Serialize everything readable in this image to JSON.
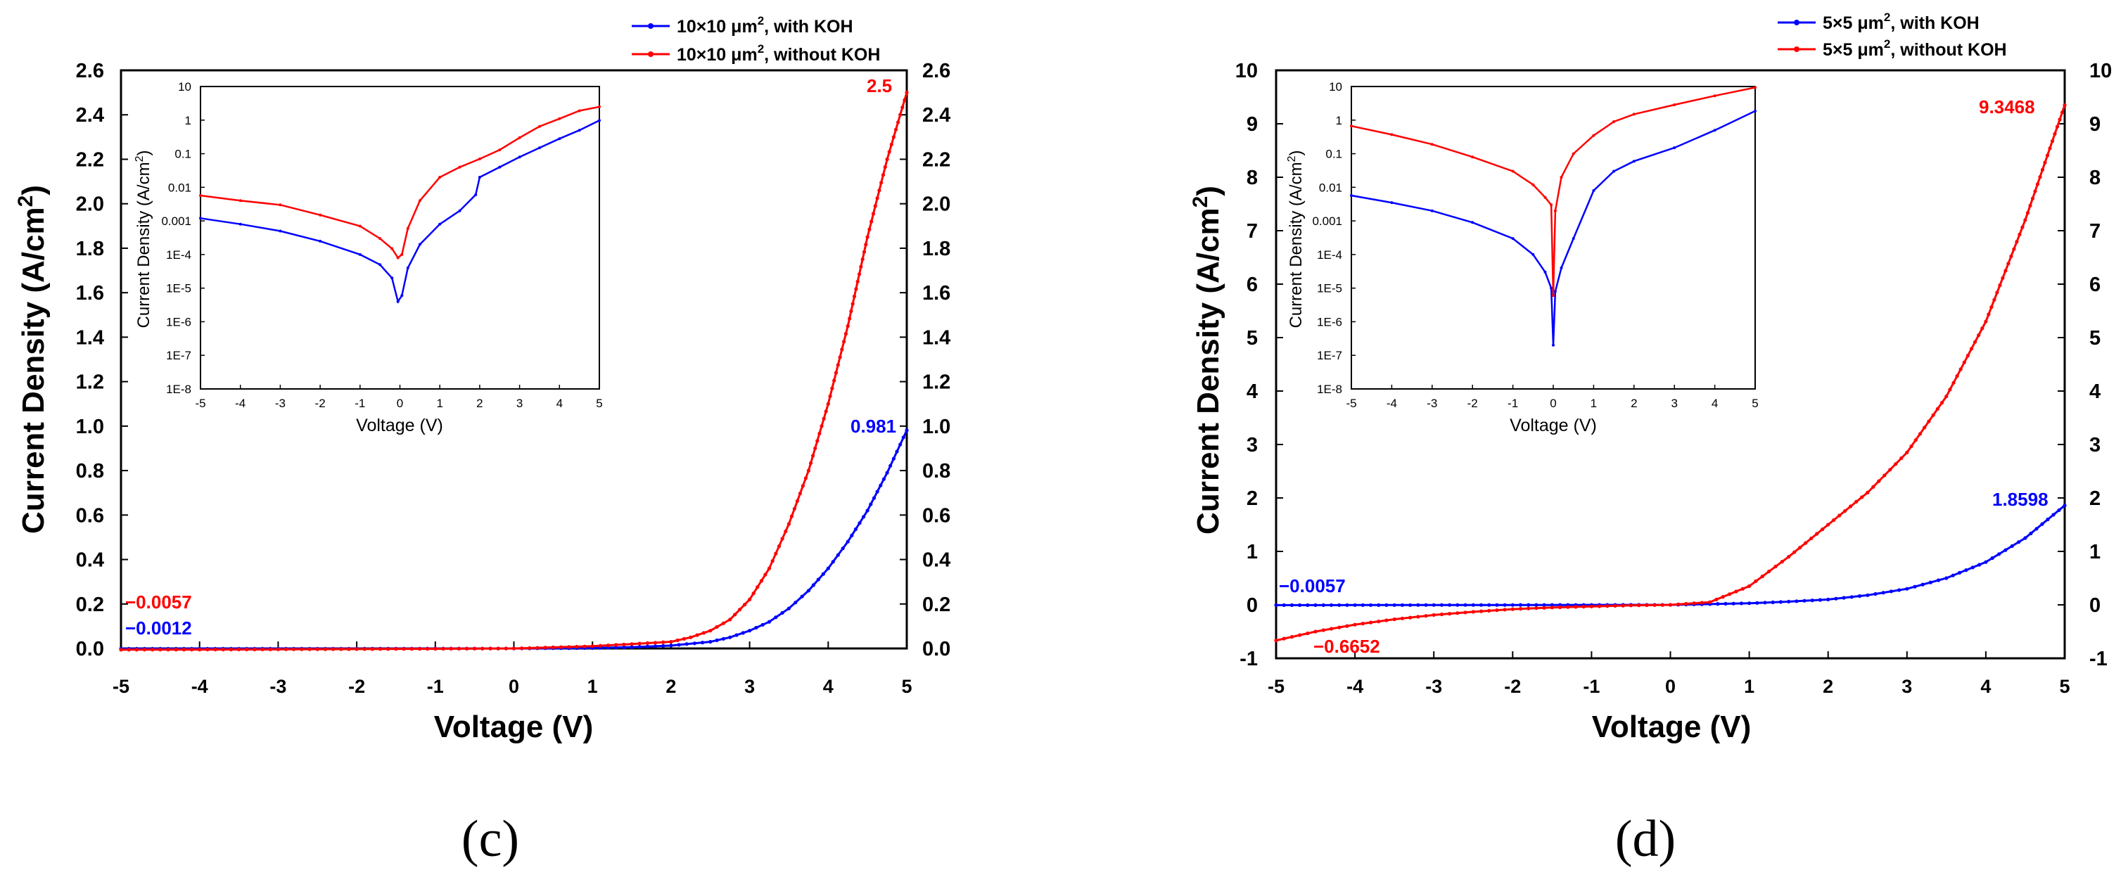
{
  "chart_data": [
    {
      "type": "line",
      "panel_label": "(c)",
      "xlabel": "Voltage (V)",
      "ylabel": "Current Density (A/cm²)",
      "ylabel_base": "Current Density (A/cm",
      "ylabel_sup": "2",
      "ylabel_end": ")",
      "xlim": [
        -5,
        5
      ],
      "ylim": [
        0,
        2.6
      ],
      "x_ticks": [
        "-5",
        "-4",
        "-3",
        "-2",
        "-1",
        "0",
        "1",
        "2",
        "3",
        "4",
        "5"
      ],
      "y_ticks": [
        "0.0",
        "0.2",
        "0.4",
        "0.6",
        "0.8",
        "1.0",
        "1.2",
        "1.4",
        "1.6",
        "1.8",
        "2.0",
        "2.2",
        "2.4",
        "2.6"
      ],
      "y_ticks_right": [
        "0.0",
        "0.2",
        "0.4",
        "0.6",
        "0.8",
        "1.0",
        "1.2",
        "1.4",
        "1.6",
        "1.8",
        "2.0",
        "2.2",
        "2.4",
        "2.6"
      ],
      "legend_position": "top-right, outside plot",
      "legend": [
        {
          "pre": "10×10 μm",
          "sup": "2",
          "post": ", with KOH",
          "color": "#0000ff"
        },
        {
          "pre": "10×10 μm",
          "sup": "2",
          "post": ", without KOH",
          "color": "#ff0000"
        }
      ],
      "annotations": [
        {
          "text": "2.5",
          "color": "#ff0000"
        },
        {
          "text": "0.981",
          "color": "#0000ff"
        },
        {
          "text": "−0.0057",
          "color": "#ff0000"
        },
        {
          "text": "−0.0012",
          "color": "#0000ff"
        }
      ],
      "series": [
        {
          "name": "10×10 μm², with KOH",
          "color": "#0000ff",
          "x": [
            -5,
            -4,
            -3,
            -2,
            -1,
            0,
            1,
            1.5,
            2,
            2.5,
            2.75,
            3,
            3.25,
            3.5,
            3.75,
            4,
            4.25,
            4.5,
            4.75,
            5
          ],
          "values": [
            -0.0012,
            -0.0011,
            -0.001,
            -0.0008,
            -0.0004,
            0,
            0.002,
            0.006,
            0.013,
            0.03,
            0.05,
            0.08,
            0.12,
            0.18,
            0.26,
            0.36,
            0.48,
            0.62,
            0.79,
            0.981
          ]
        },
        {
          "name": "10×10 μm², without KOH",
          "color": "#ff0000",
          "x": [
            -5,
            -4,
            -3,
            -2,
            -1,
            0,
            1,
            1.5,
            2,
            2.25,
            2.5,
            2.75,
            3,
            3.25,
            3.5,
            3.75,
            4,
            4.25,
            4.5,
            4.75,
            5
          ],
          "values": [
            -0.0057,
            -0.005,
            -0.004,
            -0.003,
            -0.0015,
            0,
            0.01,
            0.02,
            0.03,
            0.05,
            0.08,
            0.13,
            0.22,
            0.36,
            0.56,
            0.8,
            1.1,
            1.45,
            1.85,
            2.2,
            2.5
          ]
        }
      ],
      "inset": {
        "type": "line",
        "xlabel": "Voltage (V)",
        "ylabel_base": "Current Density (A/cm",
        "ylabel_sup": "2",
        "ylabel_end": ")",
        "xlim": [
          -5,
          5
        ],
        "log_range": [
          -8,
          1
        ],
        "x_ticks": [
          "-5",
          "-4",
          "-3",
          "-2",
          "-1",
          "0",
          "1",
          "2",
          "3",
          "4",
          "5"
        ],
        "y_ticks": [
          "1E-8",
          "1E-7",
          "1E-6",
          "1E-5",
          "1E-4",
          "0.001",
          "0.01",
          "0.1",
          "1",
          "10"
        ],
        "series": [
          {
            "name": "with KOH",
            "color": "#0000ff",
            "x": [
              -5,
              -4,
              -3,
              -2,
              -1,
              -0.5,
              -0.2,
              -0.05,
              0.05,
              0.2,
              0.5,
              1,
              1.5,
              1.9,
              2,
              2.5,
              3,
              3.5,
              4,
              4.5,
              5
            ],
            "values": [
              0.0012,
              0.0008,
              0.0005,
              0.00025,
              0.0001,
              5e-05,
              2e-05,
              4e-06,
              6e-06,
              4e-05,
              0.0002,
              0.0008,
              0.002,
              0.006,
              0.02,
              0.04,
              0.08,
              0.15,
              0.28,
              0.5,
              0.98
            ]
          },
          {
            "name": "without KOH",
            "color": "#ff0000",
            "x": [
              -5,
              -4,
              -3,
              -2,
              -1,
              -0.5,
              -0.2,
              -0.05,
              0.05,
              0.2,
              0.5,
              1,
              1.5,
              2,
              2.5,
              3,
              3.5,
              4,
              4.5,
              5
            ],
            "values": [
              0.0057,
              0.004,
              0.003,
              0.0015,
              0.0007,
              0.0003,
              0.00015,
              8e-05,
              0.0001,
              0.0006,
              0.004,
              0.02,
              0.04,
              0.07,
              0.13,
              0.3,
              0.65,
              1.1,
              1.9,
              2.5
            ]
          }
        ]
      }
    },
    {
      "type": "line",
      "panel_label": "(d)",
      "xlabel": "Voltage (V)",
      "ylabel": "Current Density (A/cm²)",
      "ylabel_base": "Current Density (A/cm",
      "ylabel_sup": "2",
      "ylabel_end": ")",
      "xlim": [
        -5,
        5
      ],
      "ylim": [
        -1,
        10
      ],
      "x_ticks": [
        "-5",
        "-4",
        "-3",
        "-2",
        "-1",
        "0",
        "1",
        "2",
        "3",
        "4",
        "5"
      ],
      "y_ticks": [
        "-1",
        "0",
        "1",
        "2",
        "3",
        "4",
        "5",
        "6",
        "7",
        "8",
        "9",
        "10"
      ],
      "y_ticks_right": [
        "-1",
        "0",
        "1",
        "2",
        "3",
        "4",
        "5",
        "6",
        "7",
        "8",
        "9",
        "10"
      ],
      "legend_position": "top-right, outside plot",
      "legend": [
        {
          "pre": "5×5 μm",
          "sup": "2",
          "post": ", with KOH",
          "color": "#0000ff"
        },
        {
          "pre": "5×5 μm",
          "sup": "2",
          "post": ", without KOH",
          "color": "#ff0000"
        }
      ],
      "annotations": [
        {
          "text": "9.3468",
          "color": "#ff0000"
        },
        {
          "text": "1.8598",
          "color": "#0000ff"
        },
        {
          "text": "−0.0057",
          "color": "#0000ff"
        },
        {
          "text": "−0.6652",
          "color": "#ff0000"
        }
      ],
      "series": [
        {
          "name": "5×5 μm², with KOH",
          "color": "#0000ff",
          "x": [
            -5,
            -4,
            -3,
            -2,
            -1,
            0,
            1,
            1.5,
            2,
            2.5,
            3,
            3.5,
            4,
            4.5,
            5
          ],
          "values": [
            -0.0057,
            -0.004,
            -0.003,
            -0.002,
            -0.001,
            0,
            0.03,
            0.06,
            0.1,
            0.18,
            0.3,
            0.5,
            0.8,
            1.25,
            1.8598
          ]
        },
        {
          "name": "5×5 μm², without KOH",
          "color": "#ff0000",
          "x": [
            -5,
            -4.5,
            -4,
            -3.5,
            -3,
            -2.5,
            -2,
            -1.5,
            -1,
            -0.5,
            0,
            0.5,
            1,
            1.5,
            2,
            2.5,
            3,
            3.5,
            4,
            4.5,
            5
          ],
          "values": [
            -0.6652,
            -0.5,
            -0.37,
            -0.27,
            -0.19,
            -0.13,
            -0.08,
            -0.05,
            -0.03,
            -0.01,
            0,
            0.05,
            0.35,
            0.9,
            1.5,
            2.1,
            2.85,
            3.9,
            5.3,
            7.2,
            9.3468
          ]
        }
      ],
      "inset": {
        "type": "line",
        "xlabel": "Voltage (V)",
        "ylabel_base": "Current Density (A/cm",
        "ylabel_sup": "2",
        "ylabel_end": ")",
        "xlim": [
          -5,
          5
        ],
        "log_range": [
          -8,
          1
        ],
        "x_ticks": [
          "-5",
          "-4",
          "-3",
          "-2",
          "-1",
          "0",
          "1",
          "2",
          "3",
          "4",
          "5"
        ],
        "y_ticks": [
          "1E-8",
          "1E-7",
          "1E-6",
          "1E-5",
          "1E-4",
          "0.001",
          "0.01",
          "0.1",
          "1",
          "10"
        ],
        "series": [
          {
            "name": "with KOH",
            "color": "#0000ff",
            "x": [
              -5,
              -4,
              -3,
              -2,
              -1,
              -0.5,
              -0.2,
              -0.05,
              0,
              0.05,
              0.2,
              0.5,
              1,
              1.5,
              2,
              3,
              4,
              5
            ],
            "values": [
              0.0057,
              0.0035,
              0.002,
              0.0009,
              0.0003,
              0.0001,
              3e-05,
              1e-05,
              2e-07,
              8e-06,
              4e-05,
              0.0003,
              0.008,
              0.03,
              0.06,
              0.15,
              0.5,
              1.86
            ]
          },
          {
            "name": "without KOH",
            "color": "#ff0000",
            "x": [
              -5,
              -4,
              -3,
              -2,
              -1,
              -0.5,
              -0.2,
              -0.05,
              0,
              0.05,
              0.2,
              0.5,
              1,
              1.5,
              2,
              3,
              4,
              5
            ],
            "values": [
              0.6652,
              0.37,
              0.19,
              0.08,
              0.03,
              0.012,
              0.005,
              0.003,
              6e-06,
              0.002,
              0.02,
              0.1,
              0.35,
              0.9,
              1.5,
              2.85,
              5.3,
              9.3468
            ]
          }
        ]
      }
    }
  ]
}
